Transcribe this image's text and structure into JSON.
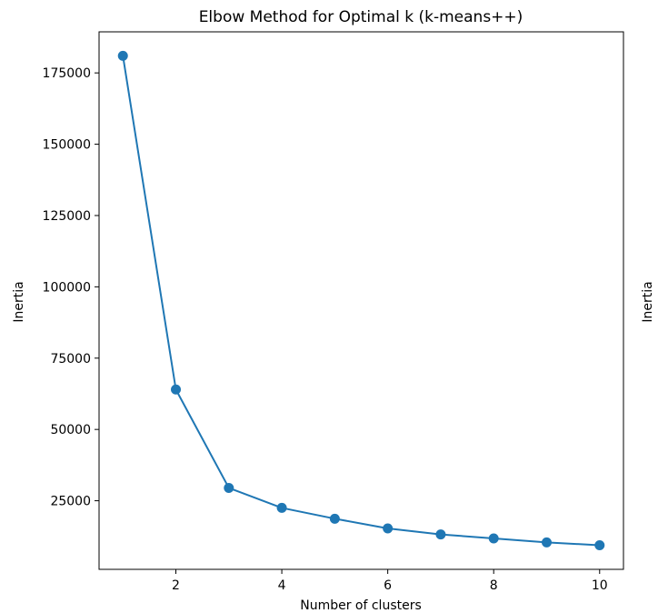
{
  "chart_data": {
    "type": "line",
    "title": "Elbow Method for Optimal k (k-means++)",
    "xlabel": "Number of clusters",
    "ylabel": "Inertia",
    "ylabel_right": "Inertia",
    "x": [
      1,
      2,
      3,
      4,
      5,
      6,
      7,
      8,
      9,
      10
    ],
    "series": [
      {
        "values": [
          181000,
          64000,
          29500,
          22500,
          18700,
          15300,
          13200,
          11800,
          10400,
          9400
        ],
        "color": "#1f77b4",
        "marker": "circle"
      }
    ],
    "xticks": [
      2,
      4,
      6,
      8,
      10
    ],
    "yticks": [
      25000,
      50000,
      75000,
      100000,
      125000,
      150000,
      175000
    ],
    "xlim": [
      0.55,
      10.45
    ],
    "ylim": [
      950,
      189400
    ],
    "grid": false,
    "legend": "none"
  }
}
